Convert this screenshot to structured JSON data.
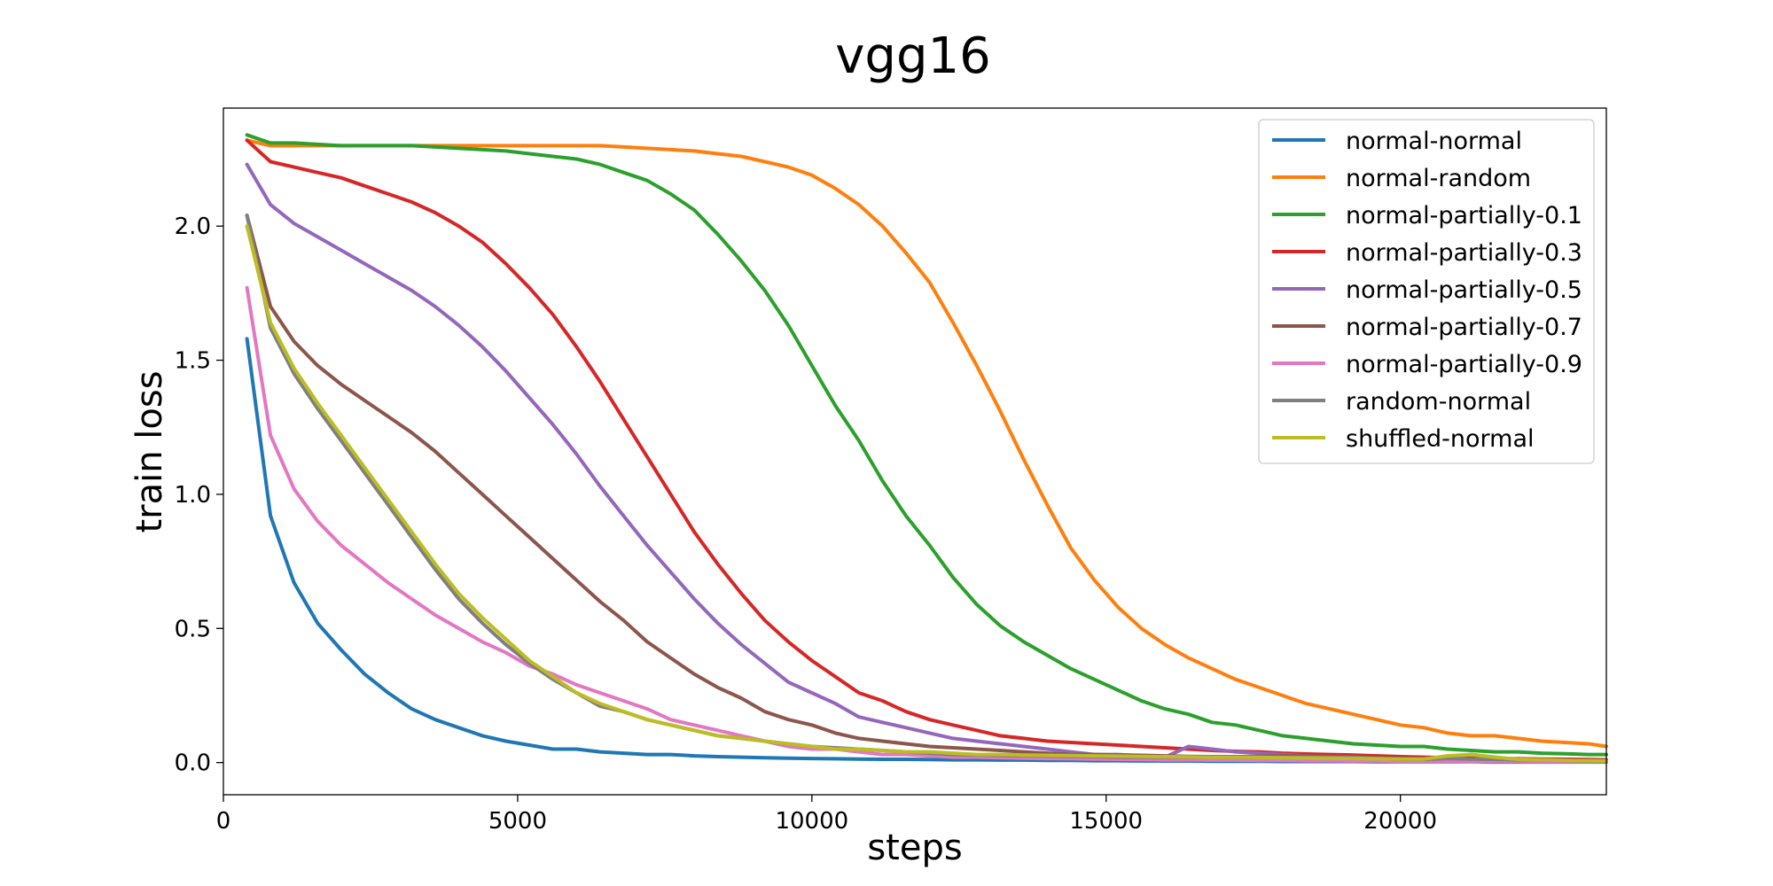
{
  "chart_data": {
    "type": "line",
    "title": "vgg16",
    "xlabel": "steps",
    "ylabel": "train loss",
    "xlim": [
      0,
      23500
    ],
    "ylim": [
      -0.12,
      2.44
    ],
    "xticks": [
      0,
      5000,
      10000,
      15000,
      20000
    ],
    "xtick_labels": [
      "0",
      "5000",
      "10000",
      "15000",
      "20000"
    ],
    "yticks": [
      0.0,
      0.5,
      1.0,
      1.5,
      2.0
    ],
    "ytick_labels": [
      "0.0",
      "0.5",
      "1.0",
      "1.5",
      "2.0"
    ],
    "grid": false,
    "legend_position": "top-right",
    "x": [
      400,
      800,
      1200,
      1600,
      2000,
      2400,
      2800,
      3200,
      3600,
      4000,
      4400,
      4800,
      5200,
      5600,
      6000,
      6400,
      6800,
      7200,
      7600,
      8000,
      8400,
      8800,
      9200,
      9600,
      10000,
      10400,
      10800,
      11200,
      11600,
      12000,
      12400,
      12800,
      13200,
      13600,
      14000,
      14400,
      14800,
      15200,
      15600,
      16000,
      16400,
      16800,
      17200,
      17600,
      18000,
      18400,
      18800,
      19200,
      19600,
      20000,
      20400,
      20800,
      21200,
      21600,
      22000,
      22400,
      22800,
      23200,
      23500
    ],
    "series": [
      {
        "name": "normal-normal",
        "color": "#1f77b4",
        "values": [
          1.58,
          0.92,
          0.67,
          0.52,
          0.42,
          0.33,
          0.26,
          0.2,
          0.16,
          0.13,
          0.1,
          0.08,
          0.065,
          0.05,
          0.05,
          0.04,
          0.035,
          0.03,
          0.03,
          0.025,
          0.022,
          0.02,
          0.018,
          0.016,
          0.015,
          0.014,
          0.013,
          0.012,
          0.012,
          0.011,
          0.01,
          0.01,
          0.009,
          0.009,
          0.008,
          0.008,
          0.007,
          0.007,
          0.006,
          0.006,
          0.006,
          0.005,
          0.005,
          0.005,
          0.004,
          0.004,
          0.004,
          0.004,
          0.003,
          0.003,
          0.003,
          0.003,
          0.003,
          0.002,
          0.002,
          0.002,
          0.002,
          0.002,
          0.002
        ]
      },
      {
        "name": "normal-random",
        "color": "#ff7f0e",
        "values": [
          2.32,
          2.3,
          2.3,
          2.3,
          2.3,
          2.3,
          2.3,
          2.3,
          2.3,
          2.3,
          2.3,
          2.3,
          2.3,
          2.3,
          2.3,
          2.3,
          2.295,
          2.29,
          2.285,
          2.28,
          2.27,
          2.26,
          2.24,
          2.22,
          2.19,
          2.14,
          2.08,
          2.0,
          1.9,
          1.79,
          1.64,
          1.48,
          1.31,
          1.13,
          0.96,
          0.8,
          0.68,
          0.58,
          0.5,
          0.44,
          0.39,
          0.35,
          0.31,
          0.28,
          0.25,
          0.22,
          0.2,
          0.18,
          0.16,
          0.14,
          0.13,
          0.11,
          0.1,
          0.1,
          0.09,
          0.08,
          0.075,
          0.07,
          0.06
        ]
      },
      {
        "name": "normal-partially-0.1",
        "color": "#2ca02c",
        "values": [
          2.34,
          2.31,
          2.31,
          2.305,
          2.3,
          2.3,
          2.3,
          2.3,
          2.295,
          2.29,
          2.285,
          2.28,
          2.27,
          2.26,
          2.25,
          2.23,
          2.2,
          2.17,
          2.12,
          2.06,
          1.97,
          1.87,
          1.76,
          1.63,
          1.48,
          1.33,
          1.2,
          1.05,
          0.92,
          0.81,
          0.69,
          0.59,
          0.51,
          0.45,
          0.4,
          0.35,
          0.31,
          0.27,
          0.23,
          0.2,
          0.18,
          0.15,
          0.14,
          0.12,
          0.1,
          0.09,
          0.08,
          0.07,
          0.065,
          0.06,
          0.06,
          0.05,
          0.045,
          0.04,
          0.04,
          0.035,
          0.033,
          0.03,
          0.03
        ]
      },
      {
        "name": "normal-partially-0.3",
        "color": "#d62728",
        "values": [
          2.32,
          2.24,
          2.22,
          2.2,
          2.18,
          2.15,
          2.12,
          2.09,
          2.05,
          2.0,
          1.94,
          1.86,
          1.77,
          1.67,
          1.55,
          1.42,
          1.28,
          1.14,
          1.0,
          0.86,
          0.74,
          0.63,
          0.53,
          0.45,
          0.38,
          0.32,
          0.26,
          0.23,
          0.19,
          0.16,
          0.14,
          0.12,
          0.1,
          0.09,
          0.08,
          0.075,
          0.07,
          0.065,
          0.06,
          0.055,
          0.05,
          0.045,
          0.042,
          0.04,
          0.035,
          0.032,
          0.03,
          0.028,
          0.025,
          0.022,
          0.02,
          0.018,
          0.016,
          0.015,
          0.014,
          0.013,
          0.012,
          0.011,
          0.01
        ]
      },
      {
        "name": "normal-partially-0.5",
        "color": "#9467bd",
        "values": [
          2.23,
          2.08,
          2.01,
          1.96,
          1.91,
          1.86,
          1.81,
          1.76,
          1.7,
          1.63,
          1.55,
          1.46,
          1.36,
          1.26,
          1.15,
          1.03,
          0.92,
          0.81,
          0.71,
          0.61,
          0.52,
          0.44,
          0.37,
          0.3,
          0.26,
          0.22,
          0.17,
          0.15,
          0.13,
          0.11,
          0.09,
          0.08,
          0.07,
          0.06,
          0.05,
          0.04,
          0.03,
          0.03,
          0.025,
          0.02,
          0.06,
          0.05,
          0.04,
          0.035,
          0.03,
          0.025,
          0.02,
          0.018,
          0.015,
          0.012,
          0.012,
          0.02,
          0.03,
          0.02,
          0.01,
          0.01,
          0.008,
          0.006,
          0.005
        ]
      },
      {
        "name": "normal-partially-0.7",
        "color": "#8c564b",
        "values": [
          2.04,
          1.7,
          1.57,
          1.48,
          1.41,
          1.35,
          1.29,
          1.23,
          1.16,
          1.08,
          1.0,
          0.92,
          0.84,
          0.76,
          0.68,
          0.6,
          0.53,
          0.45,
          0.39,
          0.33,
          0.28,
          0.24,
          0.19,
          0.16,
          0.14,
          0.11,
          0.09,
          0.08,
          0.07,
          0.06,
          0.055,
          0.05,
          0.045,
          0.04,
          0.035,
          0.03,
          0.03,
          0.028,
          0.027,
          0.025,
          0.023,
          0.022,
          0.022,
          0.023,
          0.025,
          0.024,
          0.023,
          0.02,
          0.018,
          0.016,
          0.015,
          0.013,
          0.012,
          0.01,
          0.008,
          0.006,
          0.005,
          0.004,
          0.004
        ]
      },
      {
        "name": "normal-partially-0.9",
        "color": "#e377c2",
        "values": [
          1.77,
          1.22,
          1.02,
          0.9,
          0.81,
          0.74,
          0.67,
          0.61,
          0.55,
          0.5,
          0.45,
          0.41,
          0.36,
          0.33,
          0.29,
          0.26,
          0.23,
          0.2,
          0.16,
          0.14,
          0.12,
          0.1,
          0.08,
          0.06,
          0.05,
          0.05,
          0.04,
          0.03,
          0.03,
          0.025,
          0.02,
          0.02,
          0.018,
          0.016,
          0.015,
          0.014,
          0.013,
          0.012,
          0.011,
          0.01,
          0.01,
          0.009,
          0.009,
          0.008,
          0.008,
          0.007,
          0.007,
          0.006,
          0.006,
          0.005,
          0.005,
          0.005,
          0.004,
          0.004,
          0.004,
          0.003,
          0.003,
          0.003,
          0.003
        ]
      },
      {
        "name": "random-normal",
        "color": "#7f7f7f",
        "values": [
          2.04,
          1.62,
          1.45,
          1.32,
          1.2,
          1.08,
          0.96,
          0.84,
          0.72,
          0.61,
          0.52,
          0.44,
          0.37,
          0.31,
          0.26,
          0.21,
          0.19,
          0.16,
          0.14,
          0.12,
          0.1,
          0.09,
          0.08,
          0.07,
          0.06,
          0.055,
          0.05,
          0.045,
          0.04,
          0.035,
          0.03,
          0.028,
          0.026,
          0.025,
          0.024,
          0.023,
          0.022,
          0.02,
          0.02,
          0.02,
          0.02,
          0.02,
          0.02,
          0.02,
          0.02,
          0.02,
          0.02,
          0.02,
          0.015,
          0.012,
          0.012,
          0.015,
          0.013,
          0.012,
          0.01,
          0.01,
          0.008,
          0.006,
          0.005
        ]
      },
      {
        "name": "shuffled-normal",
        "color": "#bcbd22",
        "values": [
          2.0,
          1.64,
          1.47,
          1.34,
          1.22,
          1.1,
          0.98,
          0.86,
          0.74,
          0.63,
          0.54,
          0.46,
          0.38,
          0.32,
          0.26,
          0.22,
          0.19,
          0.16,
          0.14,
          0.12,
          0.1,
          0.09,
          0.08,
          0.07,
          0.06,
          0.05,
          0.05,
          0.045,
          0.04,
          0.04,
          0.035,
          0.03,
          0.03,
          0.028,
          0.027,
          0.026,
          0.025,
          0.024,
          0.023,
          0.022,
          0.021,
          0.02,
          0.02,
          0.019,
          0.018,
          0.017,
          0.016,
          0.015,
          0.014,
          0.013,
          0.013,
          0.025,
          0.03,
          0.02,
          0.012,
          0.01,
          0.008,
          0.007,
          0.006
        ]
      }
    ]
  }
}
